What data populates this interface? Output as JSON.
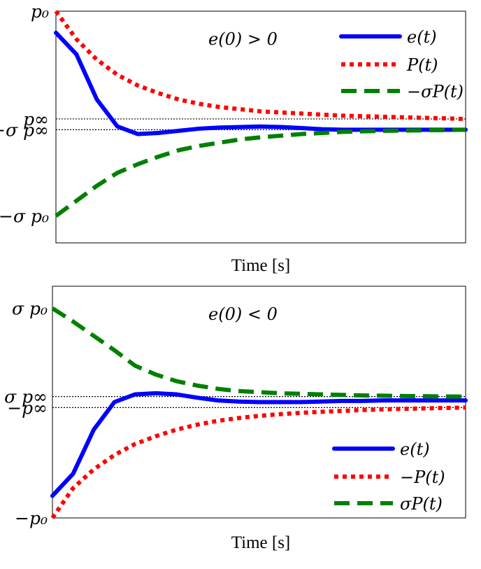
{
  "chart_data": [
    {
      "type": "line",
      "xlabel": "Time [s]",
      "ylabel": "",
      "annotation": "e(0) > 0",
      "legend_position": "top-right",
      "x_ticks": "none",
      "x": [
        0,
        0.05,
        0.1,
        0.15,
        0.2,
        0.25,
        0.3,
        0.35,
        0.4,
        0.45,
        0.5,
        0.55,
        0.6,
        0.65,
        0.7,
        0.75,
        0.8,
        0.85,
        0.9,
        0.95,
        1.0
      ],
      "ylim": [
        -1.15,
        1.0
      ],
      "y_ticks": [
        {
          "value": 1.0,
          "label": "p₀"
        },
        {
          "value": 0.0,
          "label": "p∞"
        },
        {
          "value": -0.1,
          "label": "−σ p∞"
        },
        {
          "value": -0.9,
          "label": "−σ p₀"
        }
      ],
      "reference_lines": [
        0.0,
        -0.1
      ],
      "series": [
        {
          "name": "e(t)",
          "color": "#0000ff",
          "style": "solid",
          "values": [
            0.8,
            0.6,
            0.18,
            -0.07,
            -0.14,
            -0.13,
            -0.11,
            -0.09,
            -0.08,
            -0.075,
            -0.07,
            -0.075,
            -0.085,
            -0.095,
            -0.1,
            -0.1,
            -0.1,
            -0.1,
            -0.1,
            -0.1,
            -0.1
          ]
        },
        {
          "name": "P(t)",
          "color": "#ff0000",
          "style": "dotted",
          "values": [
            1.0,
            0.74,
            0.55,
            0.41,
            0.31,
            0.24,
            0.18,
            0.14,
            0.11,
            0.09,
            0.07,
            0.06,
            0.05,
            0.04,
            0.03,
            0.025,
            0.02,
            0.015,
            0.01,
            0.005,
            0.0
          ]
        },
        {
          "name": "−σP(t)",
          "color": "#008000",
          "style": "dashed",
          "values": [
            -0.9,
            -0.76,
            -0.62,
            -0.5,
            -0.42,
            -0.35,
            -0.29,
            -0.25,
            -0.22,
            -0.19,
            -0.17,
            -0.155,
            -0.14,
            -0.13,
            -0.12,
            -0.115,
            -0.11,
            -0.108,
            -0.105,
            -0.103,
            -0.1
          ]
        }
      ]
    },
    {
      "type": "line",
      "xlabel": "Time [s]",
      "ylabel": "",
      "annotation": "e(0) < 0",
      "legend_position": "bottom-right",
      "x_ticks": "none",
      "x": [
        0,
        0.05,
        0.1,
        0.15,
        0.2,
        0.25,
        0.3,
        0.35,
        0.4,
        0.45,
        0.5,
        0.55,
        0.6,
        0.65,
        0.7,
        0.75,
        0.8,
        0.85,
        0.9,
        0.95,
        1.0
      ],
      "ylim": [
        -1.0,
        1.1
      ],
      "y_ticks": [
        {
          "value": 0.9,
          "label": "σ p₀"
        },
        {
          "value": 0.1,
          "label": "σ p∞"
        },
        {
          "value": 0.0,
          "label": "−p∞"
        },
        {
          "value": -1.0,
          "label": "−p₀"
        }
      ],
      "reference_lines": [
        0.1,
        0.0
      ],
      "series": [
        {
          "name": "e(t)",
          "color": "#0000ff",
          "style": "solid",
          "values": [
            -0.8,
            -0.6,
            -0.2,
            0.05,
            0.12,
            0.13,
            0.12,
            0.09,
            0.065,
            0.055,
            0.05,
            0.05,
            0.05,
            0.055,
            0.06,
            0.06,
            0.065,
            0.065,
            0.065,
            0.065,
            0.065
          ]
        },
        {
          "name": "−P(t)",
          "color": "#ff0000",
          "style": "dotted",
          "values": [
            -1.0,
            -0.73,
            -0.56,
            -0.43,
            -0.33,
            -0.26,
            -0.2,
            -0.155,
            -0.12,
            -0.095,
            -0.075,
            -0.06,
            -0.048,
            -0.038,
            -0.03,
            -0.022,
            -0.016,
            -0.011,
            -0.007,
            -0.003,
            0.0
          ]
        },
        {
          "name": "σP(t)",
          "color": "#008000",
          "style": "dashed",
          "values": [
            0.9,
            0.78,
            0.65,
            0.52,
            0.38,
            0.3,
            0.24,
            0.2,
            0.17,
            0.15,
            0.14,
            0.13,
            0.125,
            0.12,
            0.115,
            0.11,
            0.108,
            0.105,
            0.103,
            0.101,
            0.1
          ]
        }
      ]
    }
  ]
}
